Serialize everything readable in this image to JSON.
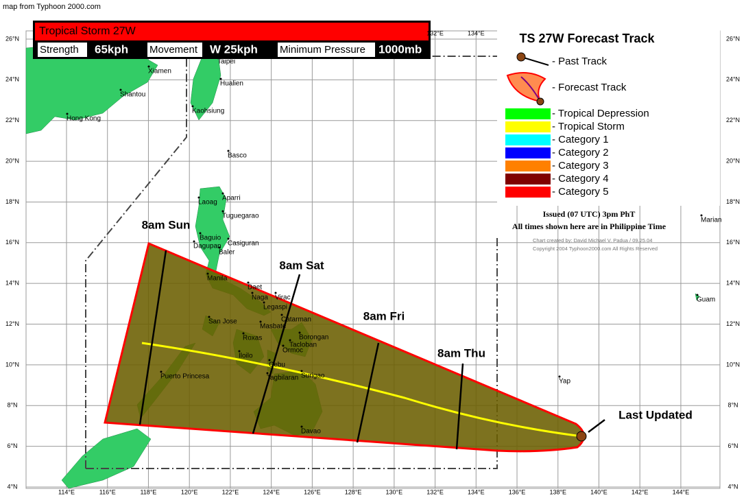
{
  "source": "map from Typhoon 2000.com",
  "header": {
    "title": "Tropical Storm 27W",
    "fields": [
      {
        "label": "Strength",
        "value": "65kph"
      },
      {
        "label": "Movement",
        "value": "W 25kph"
      },
      {
        "label": "Minimum Pressure",
        "value": "1000mb"
      }
    ]
  },
  "legend": {
    "title": "TS 27W Forecast Track",
    "track": [
      "- Past Track",
      "- Forecast Track"
    ],
    "categories": [
      {
        "name": "- Tropical Depression",
        "color": "#00ff00"
      },
      {
        "name": "- Tropical Storm",
        "color": "#ffff00"
      },
      {
        "name": "- Category 1",
        "color": "#00ffff"
      },
      {
        "name": "- Category 2",
        "color": "#0000ff"
      },
      {
        "name": "- Category 3",
        "color": "#ff8000"
      },
      {
        "name": "- Category 4",
        "color": "#800000"
      },
      {
        "name": "- Category 5",
        "color": "#ff0000"
      }
    ]
  },
  "issued": [
    "Issued (07 UTC) 3pm PhT",
    "All times shown here are in Philippine Time"
  ],
  "credits": [
    "Chart created by:  David Michael V. Padua / 09.25.04",
    "Copyright 2004  Typhoon2000.com  All Rights Reserved"
  ],
  "grid": {
    "lon_labels": [
      "114°E",
      "116°E",
      "118°E",
      "120°E",
      "122°E",
      "124°E",
      "126°E",
      "128°E",
      "130°E",
      "132°E",
      "134°E",
      "136°E",
      "138°E",
      "140°E",
      "142°E",
      "144°E"
    ],
    "lat_labels": [
      "26°N",
      "24°N",
      "22°N",
      "20°N",
      "18°N",
      "16°N",
      "14°N",
      "12°N",
      "10°N",
      "8°N",
      "6°N",
      "4°N"
    ]
  },
  "places": [
    "Xiamen",
    "Shantou",
    "Hong Kong",
    "Taipei",
    "Hualien",
    "Kaohsiung",
    "Basco",
    "Laoag",
    "Aparri",
    "Tuguegarao",
    "Baguio",
    "Dagupan",
    "Casiguran",
    "Baler",
    "Manila",
    "Daet",
    "Naga",
    "Virac",
    "Legaspi",
    "San Jose",
    "Masbate",
    "Catarman",
    "Borongan",
    "Roxas",
    "Tacloban",
    "Ormoc",
    "Iloilo",
    "Cebu",
    "Surigao",
    "Tagbilaran",
    "Puerto Princesa",
    "Davao",
    "Yap",
    "Guam",
    "Marian"
  ],
  "track_labels": [
    "8am Sun",
    "8am Sat",
    "8am Fri",
    "8am Thu",
    "Last Updated"
  ]
}
